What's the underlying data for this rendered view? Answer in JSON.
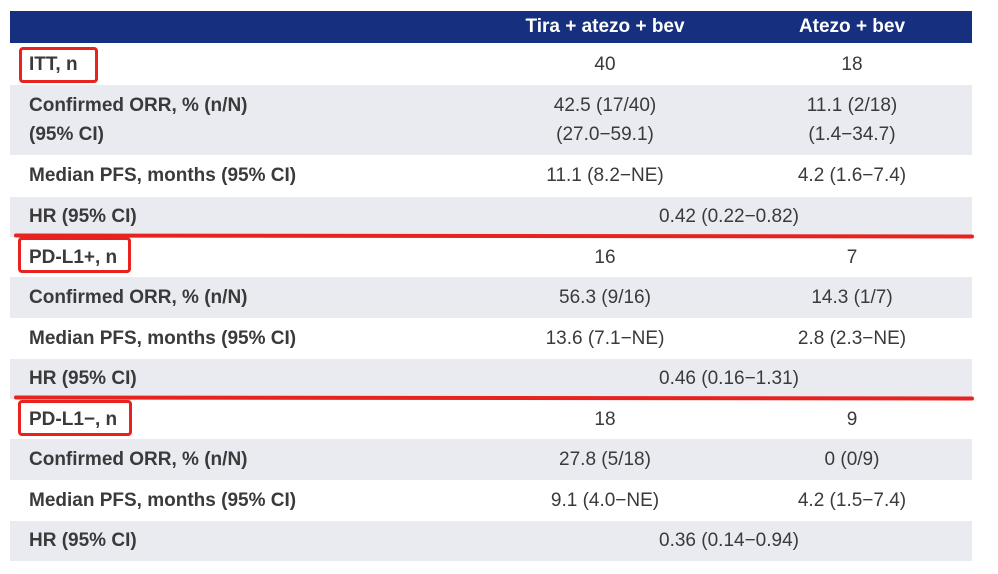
{
  "header": {
    "col1": "Tira + atezo + bev",
    "col2": "Atezo + bev"
  },
  "sections": [
    {
      "title": "ITT, n",
      "n1": "40",
      "n2": "18",
      "orr_label_line1": "Confirmed ORR, % (n/N)",
      "orr_label_line2": "(95% CI)",
      "orr1_line1": "42.5 (17/40)",
      "orr1_line2": "(27.0−59.1)",
      "orr2_line1": "11.1 (2/18)",
      "orr2_line2": "(1.4−34.7)",
      "pfs_label": "Median PFS, months (95% CI)",
      "pfs1": "11.1 (8.2−NE)",
      "pfs2": "4.2 (1.6−7.4)",
      "hr_label": "HR (95% CI)",
      "hr": "0.42 (0.22−0.82)"
    },
    {
      "title": "PD-L1+, n",
      "n1": "16",
      "n2": "7",
      "orr_label": "Confirmed ORR, % (n/N)",
      "orr1": "56.3 (9/16)",
      "orr2": "14.3 (1/7)",
      "pfs_label": "Median PFS, months (95% CI)",
      "pfs1": "13.6 (7.1−NE)",
      "pfs2": "2.8 (2.3−NE)",
      "hr_label": "HR (95% CI)",
      "hr": "0.46 (0.16−1.31)"
    },
    {
      "title": "PD-L1−, n",
      "n1": "18",
      "n2": "9",
      "orr_label": "Confirmed ORR, % (n/N)",
      "orr1": "27.8 (5/18)",
      "orr2": "0 (0/9)",
      "pfs_label": "Median PFS, months (95% CI)",
      "pfs1": "9.1 (4.0−NE)",
      "pfs2": "4.2 (1.5−7.4)",
      "hr_label": "HR (95% CI)",
      "hr": "0.36 (0.14−0.94)"
    }
  ],
  "colors": {
    "header_bg": "#16307f",
    "row_shade": "#e9ebf1",
    "highlight": "#e8231f"
  }
}
